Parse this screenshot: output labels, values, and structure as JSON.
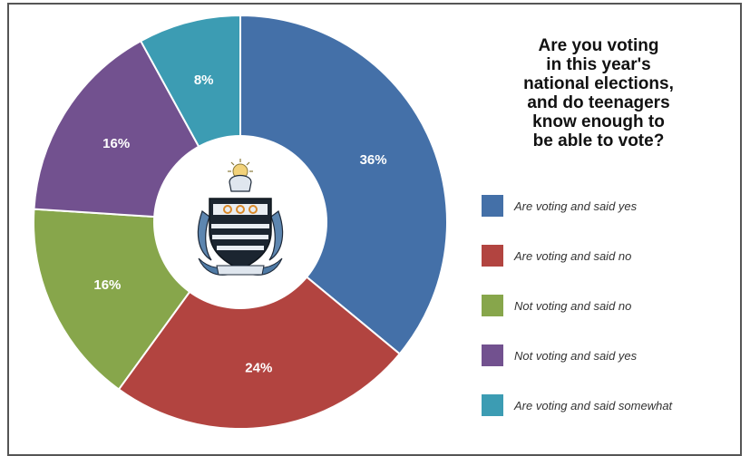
{
  "chart_data": {
    "type": "pie",
    "title_lines": [
      "Are you voting",
      "in this year's",
      "national elections,",
      "and do teenagers",
      "know enough to",
      "be able to vote?"
    ],
    "slices": [
      {
        "label": "Are voting and said yes",
        "value": 36,
        "display": "36%",
        "color": "#4470a8"
      },
      {
        "label": "Are voting and said no",
        "value": 24,
        "display": "24%",
        "color": "#b24440"
      },
      {
        "label": "Not voting and said no",
        "value": 16,
        "display": "16%",
        "color": "#87a64b"
      },
      {
        "label": "Not voting and said yes",
        "value": 16,
        "display": "16%",
        "color": "#72518f"
      },
      {
        "label": "Are voting and said somewhat",
        "value": 8,
        "display": "8%",
        "color": "#3c9cb3"
      }
    ],
    "legend_position": "right"
  }
}
